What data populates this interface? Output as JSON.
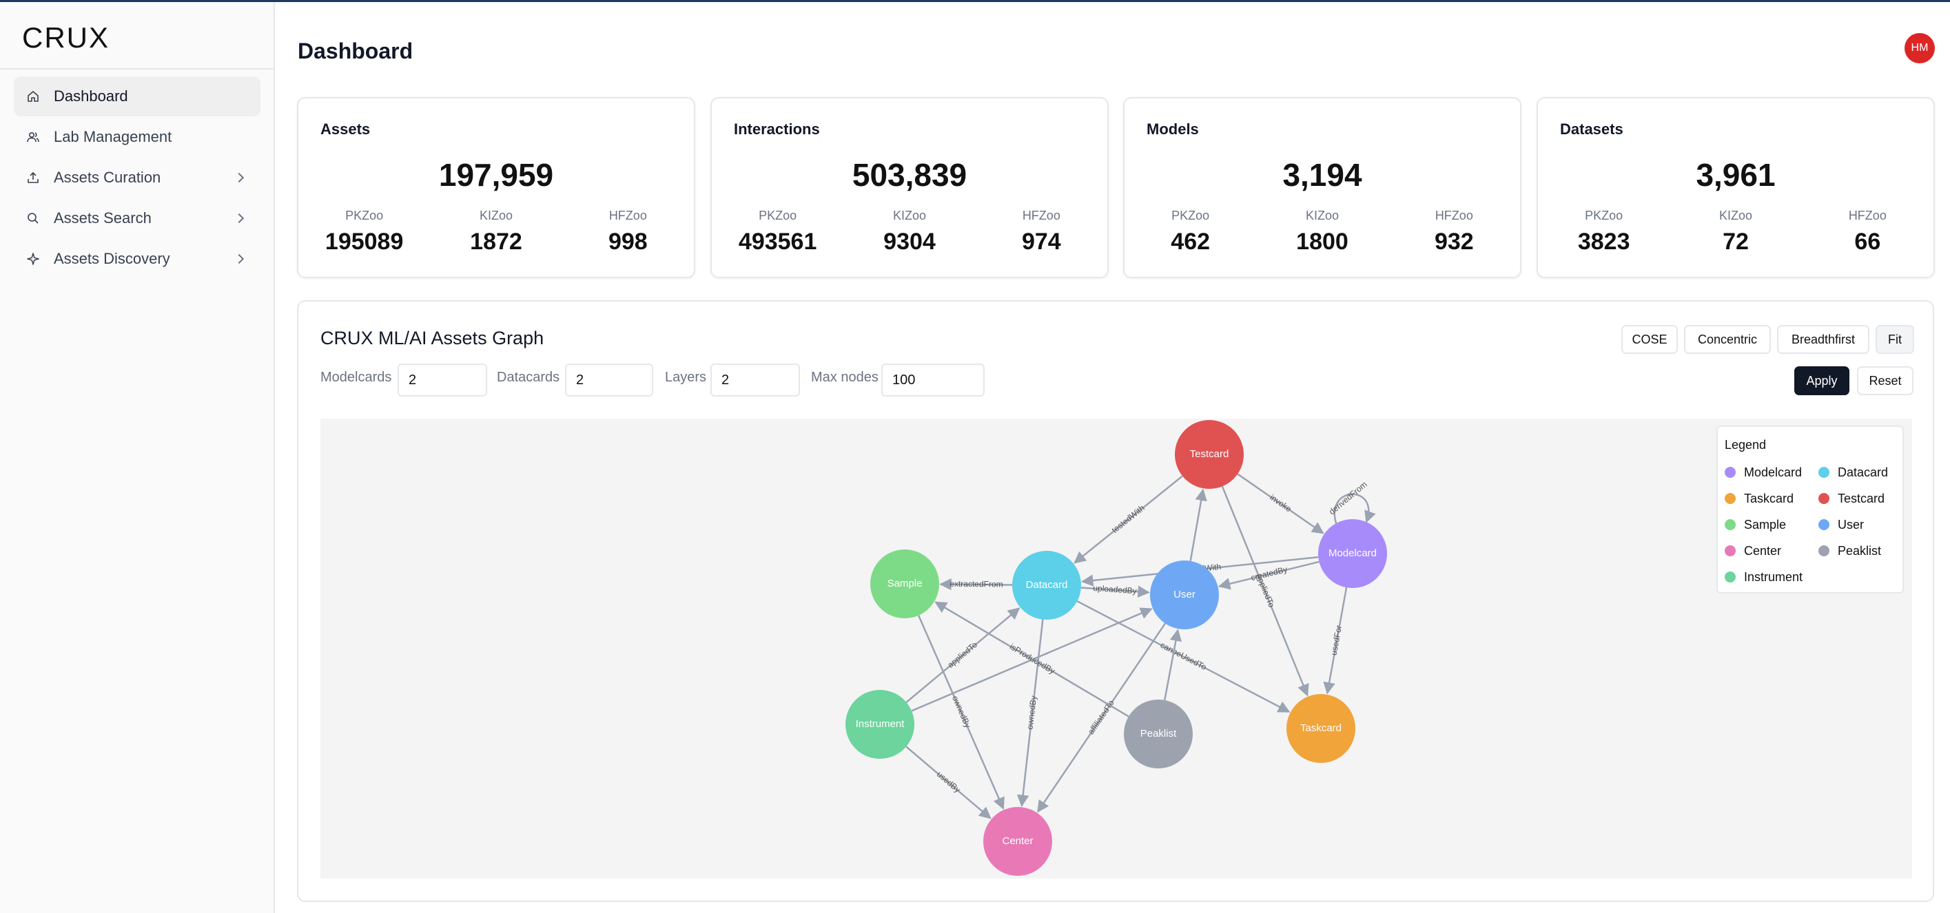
{
  "app": {
    "logo_text": "CRUX"
  },
  "sidebar": {
    "items": [
      {
        "label": "Dashboard",
        "icon": "home-icon",
        "active": true,
        "has_chevron": false
      },
      {
        "label": "Lab Management",
        "icon": "users-icon",
        "active": false,
        "has_chevron": false
      },
      {
        "label": "Assets Curation",
        "icon": "upload-icon",
        "active": false,
        "has_chevron": true
      },
      {
        "label": "Assets Search",
        "icon": "search-icon",
        "active": false,
        "has_chevron": true
      },
      {
        "label": "Assets Discovery",
        "icon": "sparkle-icon",
        "active": false,
        "has_chevron": true
      }
    ]
  },
  "header": {
    "title": "Dashboard",
    "avatar_initials": "HM",
    "avatar_color": "#dc2626"
  },
  "stats": [
    {
      "title": "Assets",
      "total": "197,959",
      "subs": [
        {
          "label": "PKZoo",
          "value": "195089"
        },
        {
          "label": "KIZoo",
          "value": "1872"
        },
        {
          "label": "HFZoo",
          "value": "998"
        }
      ]
    },
    {
      "title": "Interactions",
      "total": "503,839",
      "subs": [
        {
          "label": "PKZoo",
          "value": "493561"
        },
        {
          "label": "KIZoo",
          "value": "9304"
        },
        {
          "label": "HFZoo",
          "value": "974"
        }
      ]
    },
    {
      "title": "Models",
      "total": "3,194",
      "subs": [
        {
          "label": "PKZoo",
          "value": "462"
        },
        {
          "label": "KIZoo",
          "value": "1800"
        },
        {
          "label": "HFZoo",
          "value": "932"
        }
      ]
    },
    {
      "title": "Datasets",
      "total": "3,961",
      "subs": [
        {
          "label": "PKZoo",
          "value": "3823"
        },
        {
          "label": "KIZoo",
          "value": "72"
        },
        {
          "label": "HFZoo",
          "value": "66"
        }
      ]
    }
  ],
  "graph": {
    "title": "CRUX ML/AI Assets Graph",
    "layout_buttons": [
      "COSE",
      "Concentric",
      "Breadthfirst",
      "Fit"
    ],
    "controls": [
      {
        "label": "Modelcards",
        "value": "2"
      },
      {
        "label": "Datacards",
        "value": "2"
      },
      {
        "label": "Layers",
        "value": "2"
      },
      {
        "label": "Max nodes",
        "value": "100"
      }
    ],
    "apply_label": "Apply",
    "reset_label": "Reset",
    "legend": {
      "title": "Legend",
      "items": [
        {
          "label": "Modelcard",
          "color": "#a78bfa"
        },
        {
          "label": "Datacard",
          "color": "#5bd0e8"
        },
        {
          "label": "Taskcard",
          "color": "#f0a43a"
        },
        {
          "label": "Testcard",
          "color": "#e05252"
        },
        {
          "label": "Sample",
          "color": "#7ddb87"
        },
        {
          "label": "User",
          "color": "#6ea8f5"
        },
        {
          "label": "Center",
          "color": "#e879b6"
        },
        {
          "label": "Peaklist",
          "color": "#9ca3af"
        },
        {
          "label": "Instrument",
          "color": "#6cd49c"
        }
      ]
    },
    "nodes": [
      {
        "id": "testcard",
        "label": "Testcard",
        "color": "#e05252"
      },
      {
        "id": "modelcard",
        "label": "Modelcard",
        "color": "#a78bfa"
      },
      {
        "id": "sample",
        "label": "Sample",
        "color": "#7ddb87"
      },
      {
        "id": "datacard",
        "label": "Datacard",
        "color": "#5bd0e8"
      },
      {
        "id": "user",
        "label": "User",
        "color": "#6ea8f5"
      },
      {
        "id": "instrument",
        "label": "Instrument",
        "color": "#6cd49c"
      },
      {
        "id": "peaklist",
        "label": "Peaklist",
        "color": "#9ca3af"
      },
      {
        "id": "taskcard",
        "label": "Taskcard",
        "color": "#f0a43a"
      },
      {
        "id": "center",
        "label": "Center",
        "color": "#e879b6"
      }
    ],
    "edges": [
      {
        "from": "testcard",
        "to": "datacard",
        "label": "testedWith"
      },
      {
        "from": "testcard",
        "to": "modelcard",
        "label": "invoke"
      },
      {
        "from": "testcard",
        "to": "taskcard",
        "label": "appliedTo"
      },
      {
        "from": "modelcard",
        "to": "modelcard",
        "label": "derivedFrom"
      },
      {
        "from": "modelcard",
        "to": "datacard",
        "label": "trainedWith"
      },
      {
        "from": "modelcard",
        "to": "user",
        "label": "createdBy"
      },
      {
        "from": "modelcard",
        "to": "taskcard",
        "label": "usedFor"
      },
      {
        "from": "datacard",
        "to": "sample",
        "label": "extractedFrom"
      },
      {
        "from": "datacard",
        "to": "user",
        "label": "uploadedBy"
      },
      {
        "from": "datacard",
        "to": "center",
        "label": "ownedBy"
      },
      {
        "from": "datacard",
        "to": "taskcard",
        "label": "canbeUsedTo"
      },
      {
        "from": "user",
        "to": "testcard",
        "label": ""
      },
      {
        "from": "user",
        "to": "center",
        "label": "affiliatedTo"
      },
      {
        "from": "sample",
        "to": "center",
        "label": "ownedBy"
      },
      {
        "from": "instrument",
        "to": "datacard",
        "label": "appliedTo"
      },
      {
        "from": "instrument",
        "to": "user",
        "label": ""
      },
      {
        "from": "instrument",
        "to": "center",
        "label": "usedBy"
      },
      {
        "from": "peaklist",
        "to": "sample",
        "label": "isProducedBy"
      },
      {
        "from": "peaklist",
        "to": "user",
        "label": ""
      }
    ]
  }
}
